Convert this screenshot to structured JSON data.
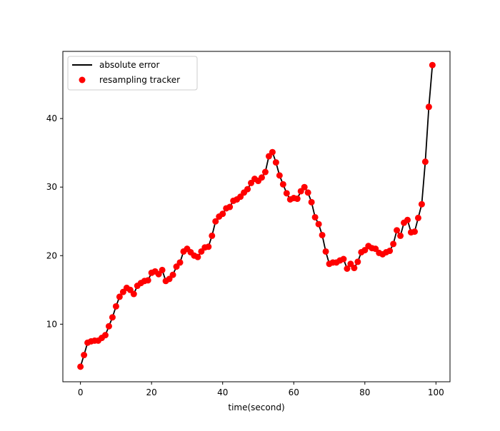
{
  "chart_data": {
    "type": "line",
    "title": "",
    "xlabel": "time(second)",
    "ylabel": "",
    "xlim": [
      -4.95,
      103.95
    ],
    "ylim": [
      1.6,
      49.8
    ],
    "xticks": [
      0,
      20,
      40,
      60,
      80,
      100
    ],
    "yticks": [
      10,
      20,
      30,
      40
    ],
    "grid": false,
    "legend_position": "top-left",
    "colors": {
      "line": "#000000",
      "scatter": "#ff0000",
      "frame": "#000000"
    },
    "x": [
      0,
      1,
      2,
      3,
      4,
      5,
      6,
      7,
      8,
      9,
      10,
      11,
      12,
      13,
      14,
      15,
      16,
      17,
      18,
      19,
      20,
      21,
      22,
      23,
      24,
      25,
      26,
      27,
      28,
      29,
      30,
      31,
      32,
      33,
      34,
      35,
      36,
      37,
      38,
      39,
      40,
      41,
      42,
      43,
      44,
      45,
      46,
      47,
      48,
      49,
      50,
      51,
      52,
      53,
      54,
      55,
      56,
      57,
      58,
      59,
      60,
      61,
      62,
      63,
      64,
      65,
      66,
      67,
      68,
      69,
      70,
      71,
      72,
      73,
      74,
      75,
      76,
      77,
      78,
      79,
      80,
      81,
      82,
      83,
      84,
      85,
      86,
      87,
      88,
      89,
      90,
      91,
      92,
      93,
      94,
      95,
      96,
      97,
      98,
      99
    ],
    "series": [
      {
        "name": "absolute error",
        "type": "line",
        "values": [
          3.8,
          5.5,
          7.3,
          7.5,
          7.6,
          7.6,
          8.0,
          8.4,
          9.7,
          11.0,
          12.6,
          14.0,
          14.7,
          15.3,
          15.0,
          14.4,
          15.6,
          16.0,
          16.3,
          16.4,
          17.5,
          17.7,
          17.3,
          17.9,
          16.3,
          16.6,
          17.2,
          18.4,
          19.0,
          20.6,
          21.0,
          20.5,
          20.0,
          19.8,
          20.6,
          21.2,
          21.3,
          22.9,
          25.0,
          25.7,
          26.1,
          26.9,
          27.1,
          28.0,
          28.2,
          28.6,
          29.2,
          29.7,
          30.6,
          31.2,
          30.9,
          31.4,
          32.2,
          34.5,
          35.1,
          33.6,
          31.7,
          30.4,
          29.1,
          28.2,
          28.4,
          28.3,
          29.4,
          30.0,
          29.2,
          27.8,
          25.6,
          24.6,
          23.0,
          20.6,
          18.8,
          19.0,
          19.0,
          19.3,
          19.5,
          18.1,
          18.8,
          18.2,
          19.1,
          20.5,
          20.8,
          21.4,
          21.1,
          21.0,
          20.4,
          20.2,
          20.5,
          20.7,
          21.7,
          23.7,
          22.9,
          24.8,
          25.2,
          23.4,
          23.5,
          25.5,
          27.5,
          33.7,
          41.7,
          47.8
        ]
      },
      {
        "name": "resampling tracker",
        "type": "scatter",
        "values": [
          3.8,
          5.5,
          7.3,
          7.5,
          7.6,
          7.6,
          8.0,
          8.4,
          9.7,
          11.0,
          12.6,
          14.0,
          14.7,
          15.3,
          15.0,
          14.4,
          15.6,
          16.0,
          16.3,
          16.4,
          17.5,
          17.7,
          17.3,
          17.9,
          16.3,
          16.6,
          17.2,
          18.4,
          19.0,
          20.6,
          21.0,
          20.5,
          20.0,
          19.8,
          20.6,
          21.2,
          21.3,
          22.9,
          25.0,
          25.7,
          26.1,
          26.9,
          27.1,
          28.0,
          28.2,
          28.6,
          29.2,
          29.7,
          30.6,
          31.2,
          30.9,
          31.4,
          32.2,
          34.5,
          35.1,
          33.6,
          31.7,
          30.4,
          29.1,
          28.2,
          28.4,
          28.3,
          29.4,
          30.0,
          29.2,
          27.8,
          25.6,
          24.6,
          23.0,
          20.6,
          18.8,
          19.0,
          19.0,
          19.3,
          19.5,
          18.1,
          18.8,
          18.2,
          19.1,
          20.5,
          20.8,
          21.4,
          21.1,
          21.0,
          20.4,
          20.2,
          20.5,
          20.7,
          21.7,
          23.7,
          22.9,
          24.8,
          25.2,
          23.4,
          23.5,
          25.5,
          27.5,
          33.7,
          41.7,
          47.8
        ]
      }
    ]
  }
}
